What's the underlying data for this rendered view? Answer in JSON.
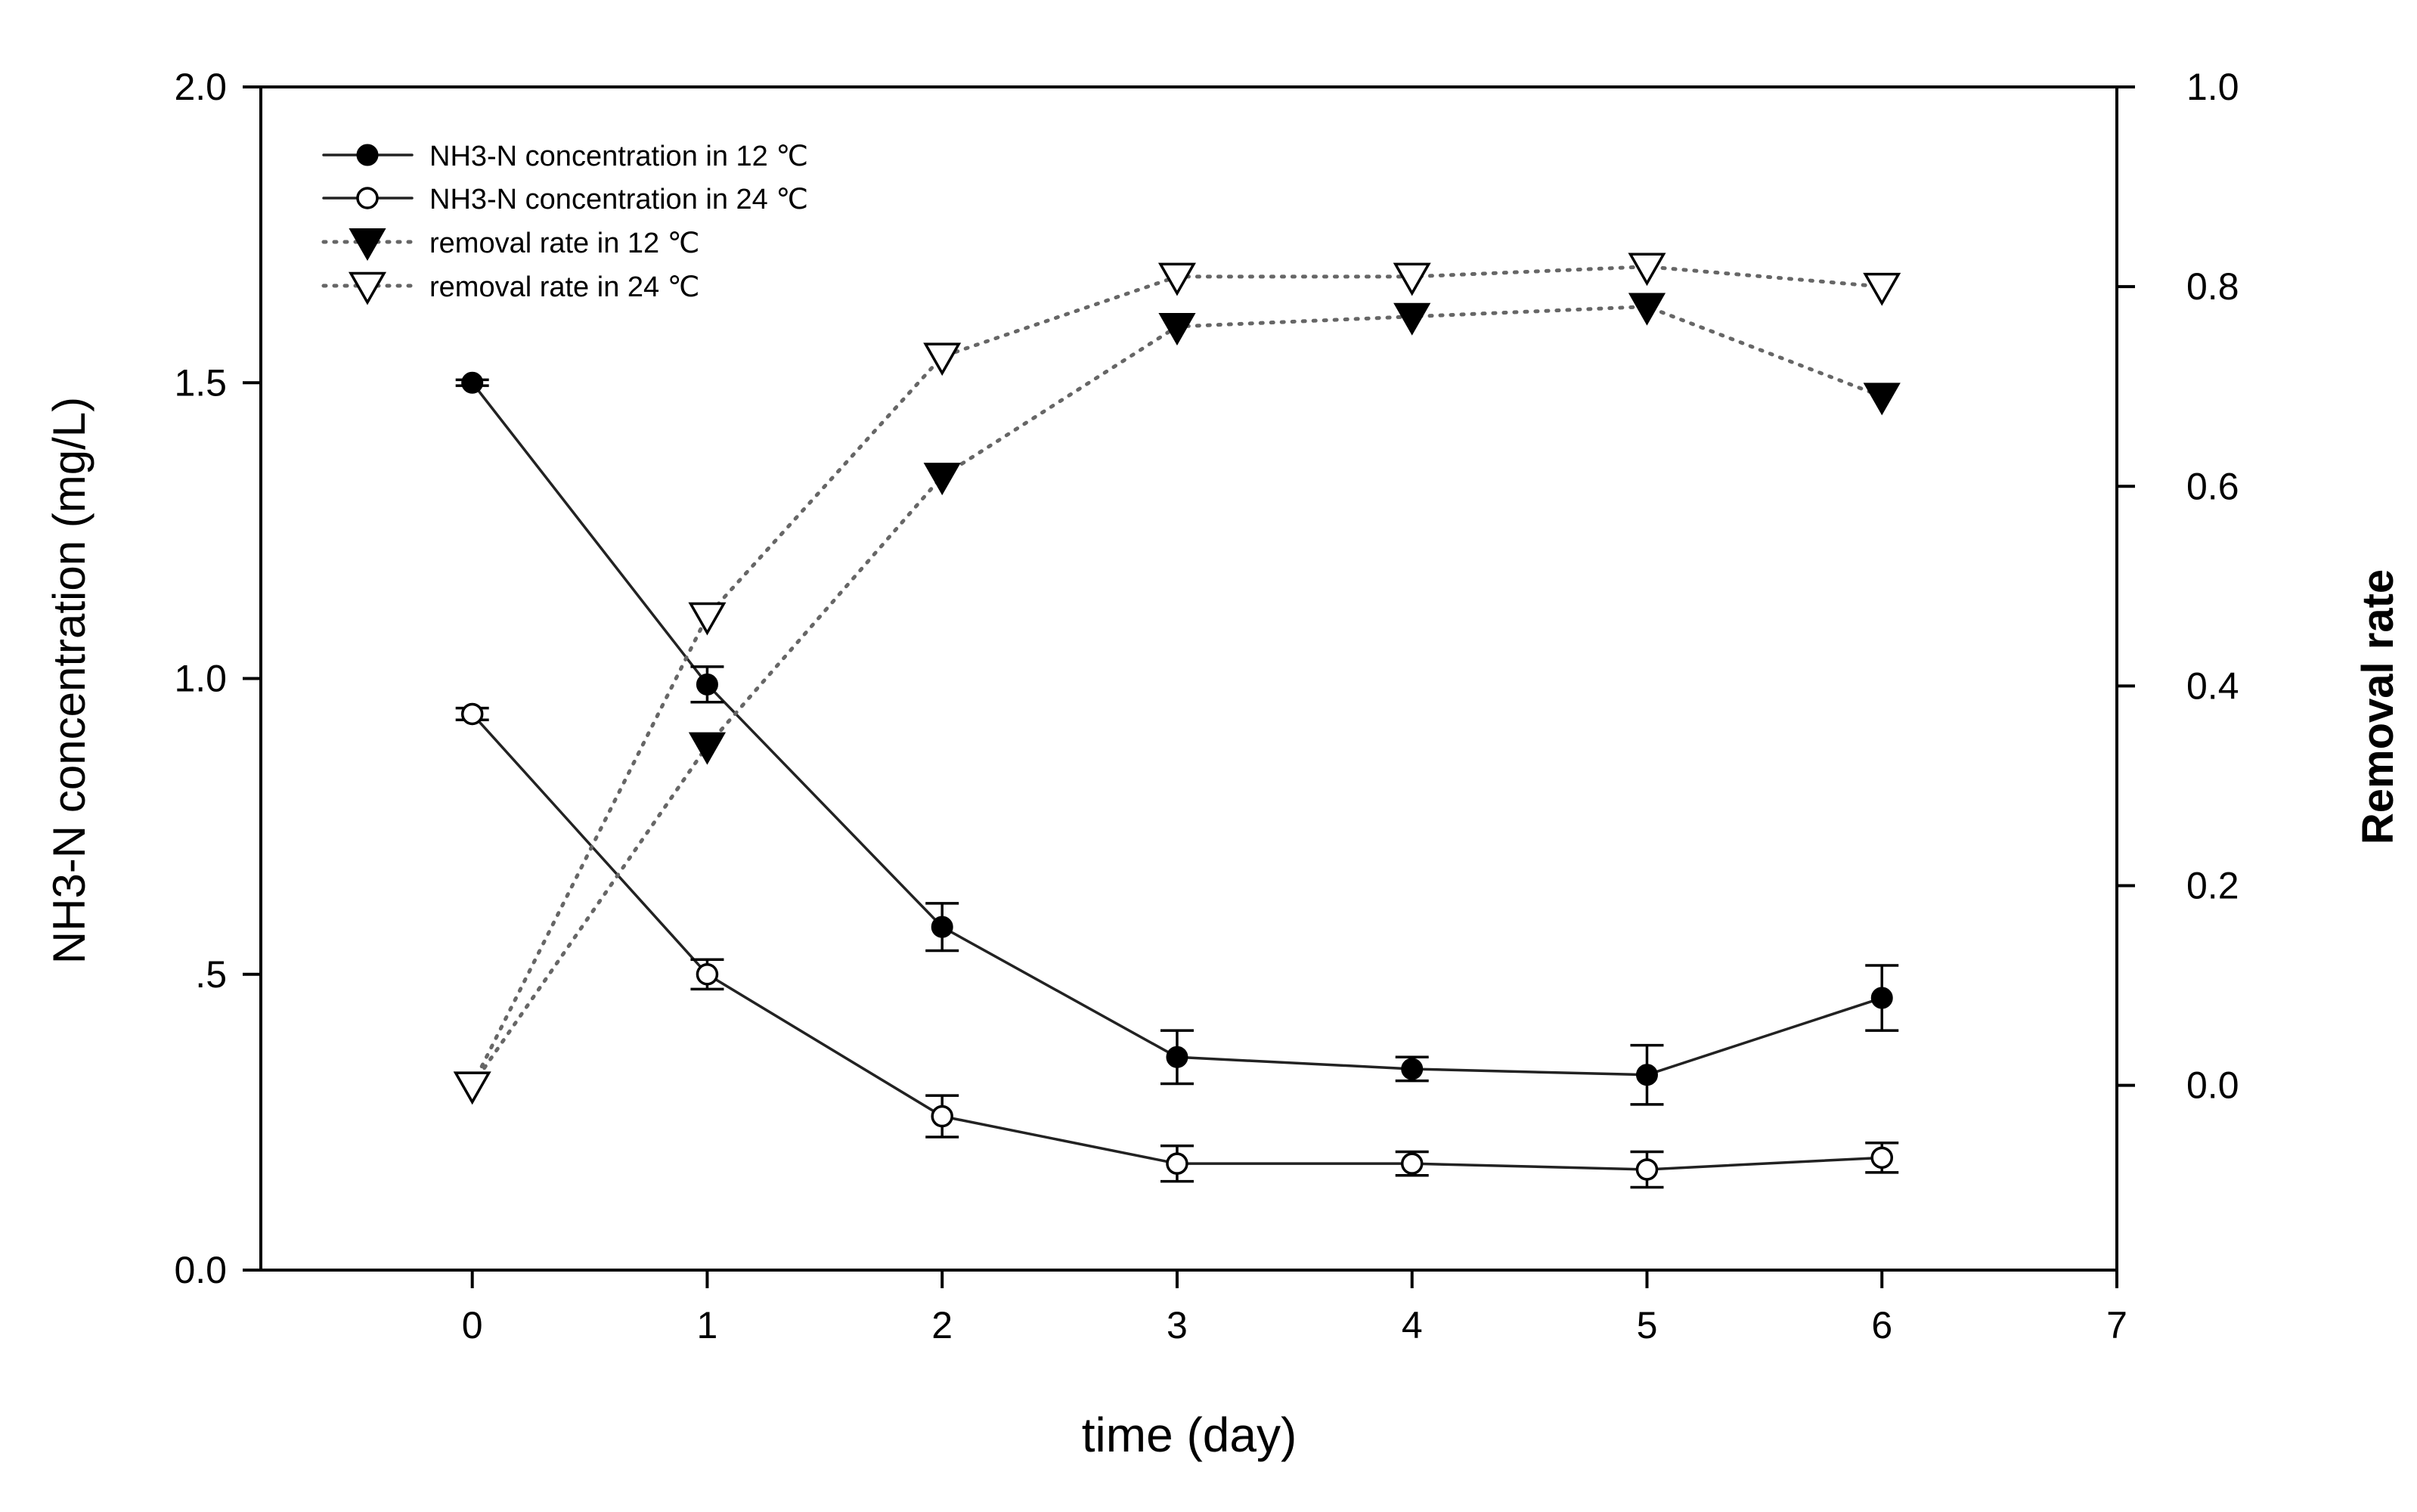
{
  "chart_data": {
    "type": "line",
    "xlabel": "time (day)",
    "ylabel": "NH3-N concentration (mg/L)",
    "y2label": "Removal rate",
    "xlim": [
      -0.9,
      7
    ],
    "ylim": [
      0,
      2.0
    ],
    "y2lim": [
      -0.185,
      1.0
    ],
    "x_ticks": [
      {
        "value": 0,
        "label": "0"
      },
      {
        "value": 1,
        "label": "1"
      },
      {
        "value": 2,
        "label": "2"
      },
      {
        "value": 3,
        "label": "3"
      },
      {
        "value": 4,
        "label": "4"
      },
      {
        "value": 5,
        "label": "5"
      },
      {
        "value": 6,
        "label": "6"
      },
      {
        "value": 7,
        "label": "7"
      }
    ],
    "y_ticks": [
      {
        "value": 0,
        "label": "0.0"
      },
      {
        "value": 0.5,
        "label": ".5"
      },
      {
        "value": 1.0,
        "label": "1.0"
      },
      {
        "value": 1.5,
        "label": "1.5"
      },
      {
        "value": 2.0,
        "label": "2.0"
      }
    ],
    "y2_ticks": [
      {
        "value": 0.0,
        "label": "0.0"
      },
      {
        "value": 0.2,
        "label": "0.2"
      },
      {
        "value": 0.4,
        "label": "0.4"
      },
      {
        "value": 0.6,
        "label": "0.6"
      },
      {
        "value": 0.8,
        "label": "0.8"
      },
      {
        "value": 1.0,
        "label": "1.0"
      }
    ],
    "x": [
      0,
      1,
      2,
      3,
      4,
      5,
      6
    ],
    "series": [
      {
        "name": "NH3-N concentration in 12 ℃",
        "axis": "left",
        "marker": "filled-circle",
        "line": "solid",
        "values": [
          1.5,
          0.99,
          0.58,
          0.36,
          0.34,
          0.33,
          0.46
        ],
        "errors": [
          0.005,
          0.03,
          0.04,
          0.045,
          0.02,
          0.05,
          0.055
        ]
      },
      {
        "name": "NH3-N concentration in 24 ℃",
        "axis": "left",
        "marker": "open-circle",
        "line": "solid",
        "values": [
          0.94,
          0.5,
          0.26,
          0.18,
          0.18,
          0.17,
          0.19
        ],
        "errors": [
          0.01,
          0.025,
          0.035,
          0.03,
          0.02,
          0.03,
          0.025
        ]
      },
      {
        "name": "removal rate in 12 ℃",
        "axis": "right",
        "marker": "filled-triangle-down",
        "line": "dotted",
        "values": [
          0.0,
          0.34,
          0.61,
          0.76,
          0.77,
          0.78,
          0.69
        ]
      },
      {
        "name": "removal rate in 24 ℃",
        "axis": "right",
        "marker": "open-triangle-down",
        "line": "dotted",
        "values": [
          0.0,
          0.47,
          0.73,
          0.81,
          0.81,
          0.82,
          0.8
        ]
      }
    ],
    "legend_position": "top-left"
  }
}
